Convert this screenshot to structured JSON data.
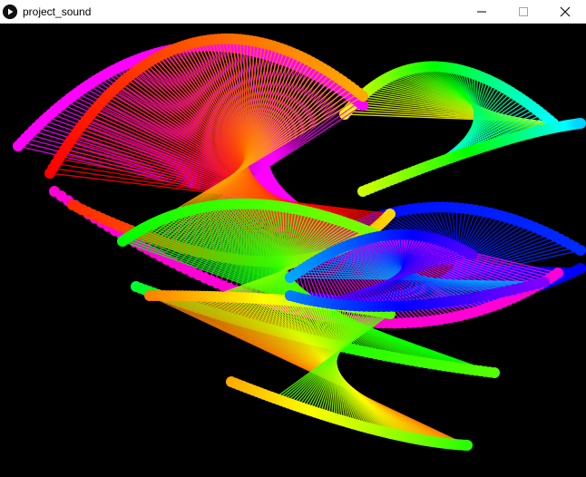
{
  "window": {
    "title": "project_sound",
    "icon": "processing-play-icon",
    "controls": [
      "minimize-icon",
      "maximize-icon",
      "close-icon"
    ]
  },
  "canvas": {
    "background": "#000000",
    "description_colors": [
      "#ff0000",
      "#ff8000",
      "#ffff00",
      "#00ff00",
      "#00ffff",
      "#0000ff",
      "#ff00ff"
    ]
  }
}
